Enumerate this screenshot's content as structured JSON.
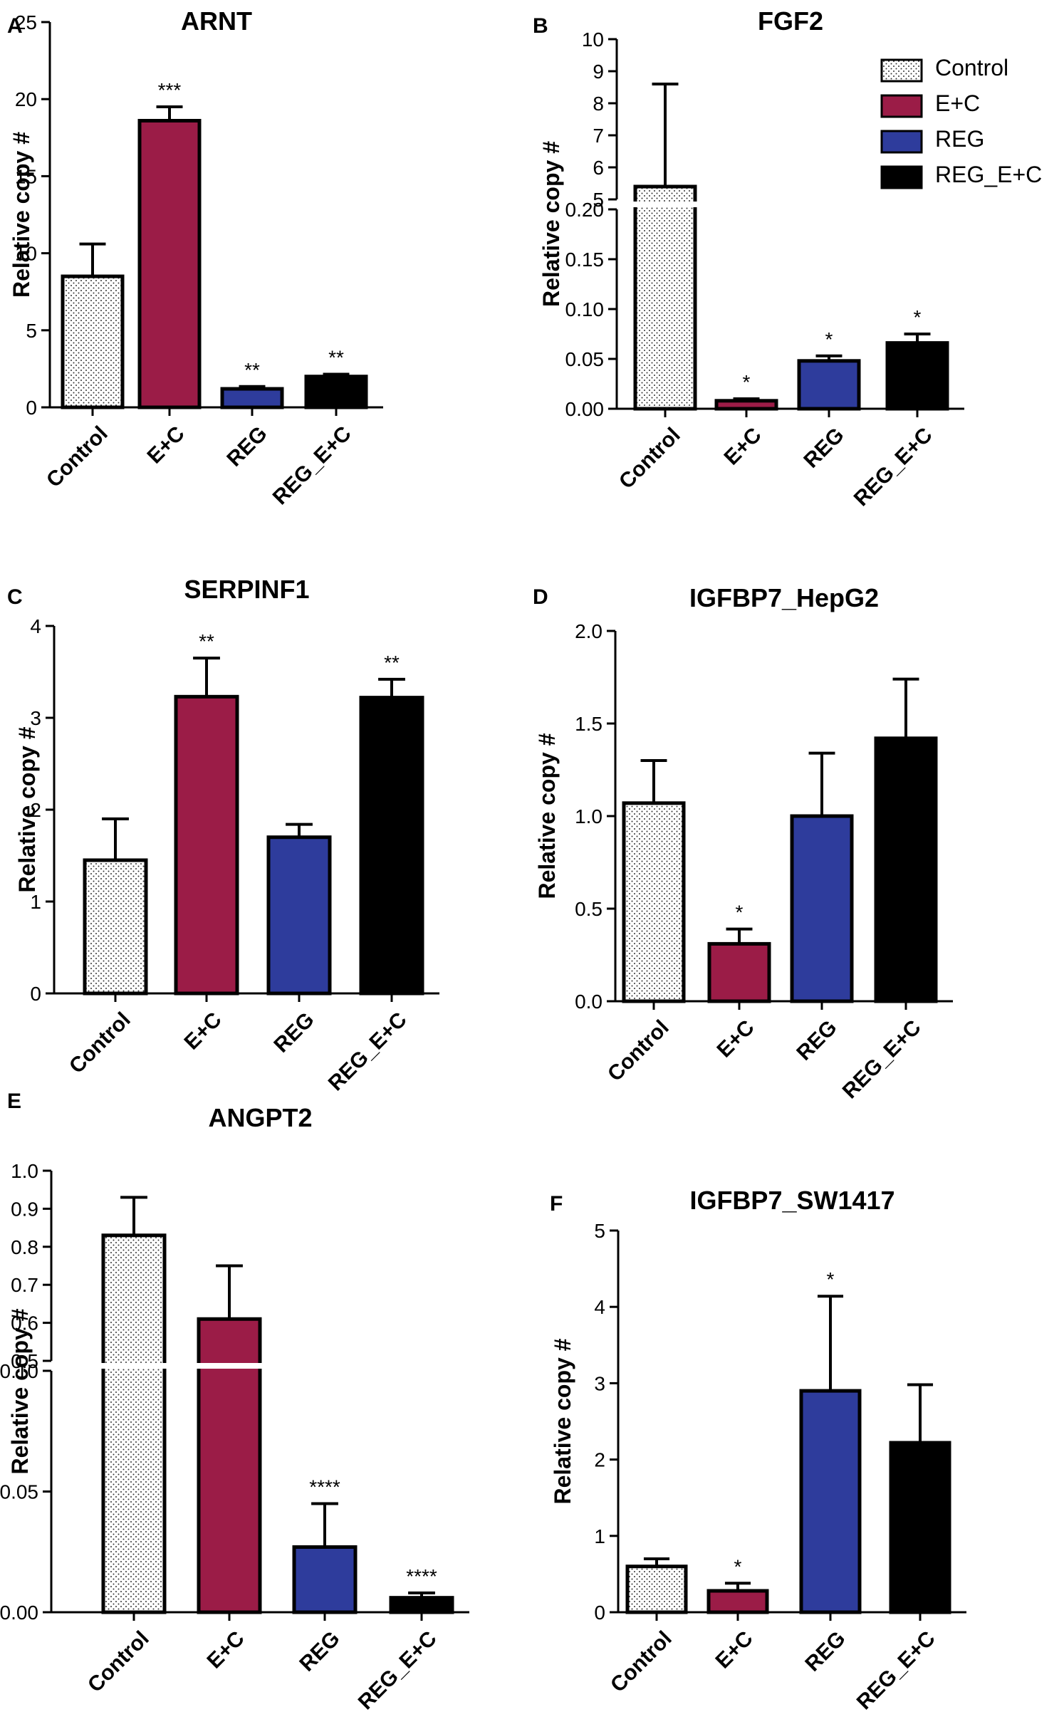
{
  "figure": {
    "legend": [
      {
        "name": "Control",
        "color": "#ffffff",
        "pattern": "dots"
      },
      {
        "name": "E+C",
        "color": "#9b1c47",
        "pattern": "solid"
      },
      {
        "name": "REG",
        "color": "#2e3c9c",
        "pattern": "solid"
      },
      {
        "name": "REG_E+C",
        "color": "#000000",
        "pattern": "solid"
      }
    ],
    "ylabel": "Relative copy #"
  },
  "chart_data": [
    {
      "panel": "A",
      "type": "bar",
      "title": "ARNT",
      "ylabel": "Relative copy #",
      "categories": [
        "Control",
        "E+C",
        "REG",
        "REG_E+C"
      ],
      "values": [
        8.5,
        18.6,
        1.2,
        2.0
      ],
      "errors": [
        2.1,
        0.9,
        0.15,
        0.15
      ],
      "significance": [
        "",
        "***",
        "**",
        "**"
      ],
      "ylim": [
        0,
        25
      ],
      "yticks": [
        "0",
        "5",
        "10",
        "15",
        "20",
        "25"
      ]
    },
    {
      "panel": "B",
      "type": "bar",
      "title": "FGF2",
      "ylabel": "Relative copy #",
      "categories": [
        "Control",
        "E+C",
        "REG",
        "REG_E+C"
      ],
      "values": [
        5.4,
        0.008,
        0.048,
        0.066
      ],
      "errors": [
        3.2,
        0.002,
        0.005,
        0.009
      ],
      "significance": [
        "",
        "*",
        "*",
        "*"
      ],
      "broken_axis": {
        "lower": [
          0,
          0.2
        ],
        "upper": [
          5,
          10
        ]
      },
      "yticks_lower": [
        "0.00",
        "0.05",
        "0.10",
        "0.15",
        "0.20"
      ],
      "yticks_upper": [
        "5",
        "6",
        "7",
        "8",
        "9",
        "10"
      ],
      "legend": true
    },
    {
      "panel": "C",
      "type": "bar",
      "title": "SERPINF1",
      "ylabel": "Relative copy #",
      "categories": [
        "Control",
        "E+C",
        "REG",
        "REG_E+C"
      ],
      "values": [
        1.45,
        3.23,
        1.7,
        3.22
      ],
      "errors": [
        0.45,
        0.42,
        0.14,
        0.2
      ],
      "significance": [
        "",
        "**",
        "",
        "**"
      ],
      "ylim": [
        0,
        4
      ],
      "yticks": [
        "0",
        "1",
        "2",
        "3",
        "4"
      ]
    },
    {
      "panel": "D",
      "type": "bar",
      "title": "IGFBP7_HepG2",
      "ylabel": "Relative copy #",
      "categories": [
        "Control",
        "E+C",
        "REG",
        "REG_E+C"
      ],
      "values": [
        1.07,
        0.31,
        1.0,
        1.42
      ],
      "errors": [
        0.23,
        0.08,
        0.34,
        0.32
      ],
      "significance": [
        "",
        "*",
        "",
        ""
      ],
      "ylim": [
        0,
        2
      ],
      "yticks": [
        "0.0",
        "0.5",
        "1.0",
        "1.5",
        "2.0"
      ]
    },
    {
      "panel": "E",
      "type": "bar",
      "title": "ANGPT2",
      "ylabel": "Relative copy #",
      "categories": [
        "Control",
        "E+C",
        "REG",
        "REG_E+C"
      ],
      "values": [
        0.83,
        0.61,
        0.027,
        0.006
      ],
      "errors": [
        0.1,
        0.14,
        0.018,
        0.002
      ],
      "significance": [
        "",
        "",
        "****",
        "****"
      ],
      "broken_axis": {
        "lower": [
          0,
          0.1
        ],
        "upper": [
          0.5,
          1.0
        ]
      },
      "yticks_lower": [
        "0.00",
        "0.05",
        "0.10"
      ],
      "yticks_upper": [
        "0.5",
        "0.6",
        "0.7",
        "0.8",
        "0.9",
        "1.0"
      ]
    },
    {
      "panel": "F",
      "type": "bar",
      "title": "IGFBP7_SW1417",
      "ylabel": "Relative copy #",
      "categories": [
        "Control",
        "E+C",
        "REG",
        "REG_E+C"
      ],
      "values": [
        0.6,
        0.28,
        2.9,
        2.22
      ],
      "errors": [
        0.1,
        0.1,
        1.24,
        0.76
      ],
      "significance": [
        "",
        "*",
        "*",
        ""
      ],
      "ylim": [
        0,
        5
      ],
      "yticks": [
        "0",
        "1",
        "2",
        "3",
        "4",
        "5"
      ]
    }
  ]
}
